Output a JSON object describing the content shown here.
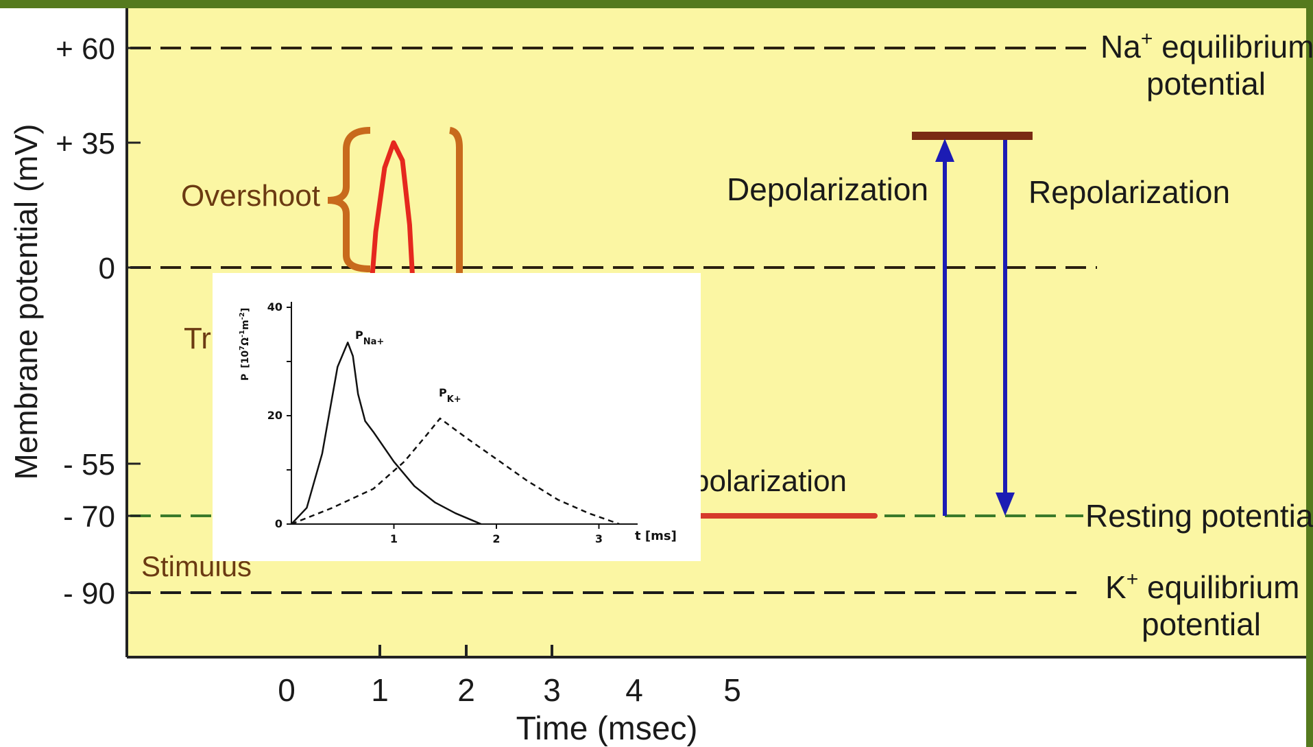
{
  "chart_data": [
    {
      "type": "line",
      "title": "",
      "xlabel": "Time (msec)",
      "ylabel": "Membrane potential (mV)",
      "x_ticks": [
        "0",
        "1",
        "2",
        "3",
        "4",
        "5"
      ],
      "y_ticks": [
        {
          "value": 60,
          "label": "+ 60"
        },
        {
          "value": 35,
          "label": "+ 35"
        },
        {
          "value": 0,
          "label": "0"
        },
        {
          "value": -55,
          "label": "- 55"
        },
        {
          "value": -70,
          "label": "- 70"
        },
        {
          "value": -90,
          "label": "- 90"
        }
      ],
      "reference_lines": [
        {
          "value": 60,
          "label": [
            "Na+ equilibrium",
            "potential"
          ]
        },
        {
          "value": 0,
          "label": []
        },
        {
          "value": -70,
          "label": [
            "Resting potential"
          ]
        },
        {
          "value": -90,
          "label": [
            "K+ equilibrium",
            "potential"
          ]
        }
      ],
      "series": [
        {
          "name": "",
          "color": "#e5281e",
          "points": [
            [
              0.95,
              -6
            ],
            [
              1.0,
              10
            ],
            [
              1.1,
              28
            ],
            [
              1.2,
              35
            ],
            [
              1.3,
              30
            ],
            [
              1.38,
              12
            ],
            [
              1.42,
              -6
            ]
          ]
        },
        {
          "name": "",
          "color": "#d63a2a",
          "points": [
            [
              3.9,
              -70
            ],
            [
              5.0,
              -70
            ],
            [
              6.6,
              -70
            ]
          ]
        }
      ],
      "annotations": {
        "overshoot": "Overshoot",
        "depolarization": "Depolarization",
        "repolarization": "Repolarization",
        "hyperpolarization_partial": "polarization",
        "threshold_partial": "Tr",
        "stimulus": "Stimulus"
      },
      "bracket_color": "#c86a1c",
      "arrow_color": "#1c1cb4",
      "bar_color": "#7a2b14",
      "background_color": "#fbf6a3",
      "frame_color": "#557a1e"
    },
    {
      "type": "line",
      "title": "",
      "xlabel": "t [ms]",
      "ylabel_parts": {
        "main": "P",
        "unit_open": "[10",
        "exp1": "7",
        "omega": "Ω",
        "exp2": "-1",
        "m": "m",
        "exp3": "-2",
        "close": "]"
      },
      "xlim": [
        0,
        3.5
      ],
      "ylim": [
        0,
        40
      ],
      "x_ticks": [
        1,
        2,
        3
      ],
      "y_ticks": [
        0,
        20,
        40
      ],
      "series": [
        {
          "name_main": "P",
          "name_sub": "Na+",
          "style": "solid",
          "x": [
            0,
            0.15,
            0.3,
            0.45,
            0.55,
            0.6,
            0.65,
            0.72,
            0.8,
            1.0,
            1.2,
            1.4,
            1.6,
            1.8,
            1.85
          ],
          "y": [
            0,
            3,
            13,
            29,
            33.5,
            31,
            24,
            19,
            17,
            11.5,
            7,
            4,
            2,
            0.4,
            0
          ]
        },
        {
          "name_main": "P",
          "name_sub": "K+",
          "style": "dashed",
          "x": [
            0,
            0.4,
            0.8,
            1.1,
            1.3,
            1.45,
            1.7,
            2.0,
            2.3,
            2.6,
            2.9,
            3.2
          ],
          "y": [
            0,
            3,
            6.5,
            11.5,
            16,
            19.5,
            16,
            12,
            8,
            4.5,
            2,
            0
          ]
        }
      ]
    }
  ]
}
